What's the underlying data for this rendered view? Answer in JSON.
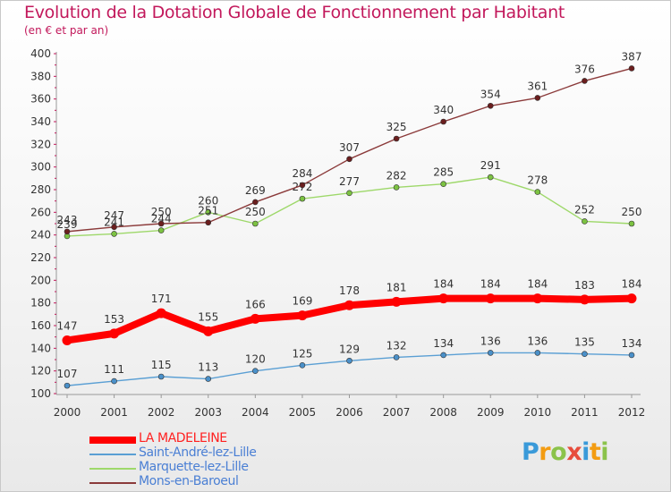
{
  "title": "Evolution de la Dotation Globale de Fonctionnement par Habitant",
  "subtitle": "(en € et par an)",
  "logo_text": "Proxiti",
  "colors": {
    "title": "#c2185b",
    "axis_text": "#333333",
    "grid": "#d0d0d0"
  },
  "chart_data": {
    "type": "line",
    "title": "Evolution de la Dotation Globale de Fonctionnement par Habitant",
    "ylabel": "(en € et par an)",
    "xlabel": "",
    "x": [
      2000,
      2001,
      2002,
      2003,
      2004,
      2005,
      2006,
      2007,
      2008,
      2009,
      2010,
      2011,
      2012
    ],
    "ylim": [
      100,
      400
    ],
    "yticks": [
      100,
      120,
      140,
      160,
      180,
      200,
      220,
      240,
      260,
      280,
      300,
      320,
      340,
      360,
      380,
      400
    ],
    "grid": false,
    "legend_position": "bottom-left",
    "series": [
      {
        "name": "Saint-André-lez-Lille",
        "color": "#5a9fd4",
        "marker_color": "#4a90c9",
        "weight": "thin",
        "values": [
          107,
          111,
          115,
          113,
          120,
          125,
          129,
          132,
          134,
          136,
          136,
          135,
          134
        ],
        "labels": [
          "107",
          "111",
          "115",
          "113",
          "120",
          "125",
          "129",
          "132",
          "134",
          "136",
          "136",
          "135",
          "134"
        ]
      },
      {
        "name": "Marquette-lez-Lille",
        "color": "#9ed86a",
        "marker_color": "#7cc242",
        "weight": "thin",
        "values": [
          239,
          241,
          244,
          260,
          250,
          272,
          277,
          282,
          285,
          291,
          278,
          252,
          250
        ],
        "labels": [
          "239",
          "241",
          "244",
          "260",
          "250",
          "272",
          "277",
          "282",
          "285",
          "291",
          "278",
          "252",
          "250"
        ]
      },
      {
        "name": "Mons-en-Baroeul",
        "color": "#8b3a3a",
        "marker_color": "#6b1e1e",
        "weight": "thin",
        "values": [
          243,
          247,
          250,
          251,
          269,
          284,
          307,
          325,
          340,
          354,
          361,
          376,
          387
        ],
        "labels": [
          "243",
          "247",
          "250",
          "251",
          "269",
          "284",
          "307",
          "325",
          "340",
          "354",
          "361",
          "376",
          "387"
        ]
      },
      {
        "name": "LA MADELEINE",
        "color": "#ff0000",
        "marker_color": "#ff0000",
        "weight": "thick",
        "values": [
          147,
          153,
          171,
          155,
          166,
          169,
          178,
          181,
          184,
          184,
          184,
          183,
          184
        ],
        "labels": [
          "147",
          "153",
          "171",
          "155",
          "166",
          "169",
          "178",
          "181",
          "184",
          "184",
          "184",
          "183",
          "184"
        ]
      }
    ],
    "legend": [
      {
        "name": "LA MADELEINE",
        "color": "#ff0000",
        "weight": "thick"
      },
      {
        "name": "Saint-André-lez-Lille",
        "color": "#5a9fd4",
        "weight": "thin"
      },
      {
        "name": "Marquette-lez-Lille",
        "color": "#9ed86a",
        "weight": "thin"
      },
      {
        "name": "Mons-en-Baroeul",
        "color": "#8b3a3a",
        "weight": "thin"
      }
    ]
  }
}
